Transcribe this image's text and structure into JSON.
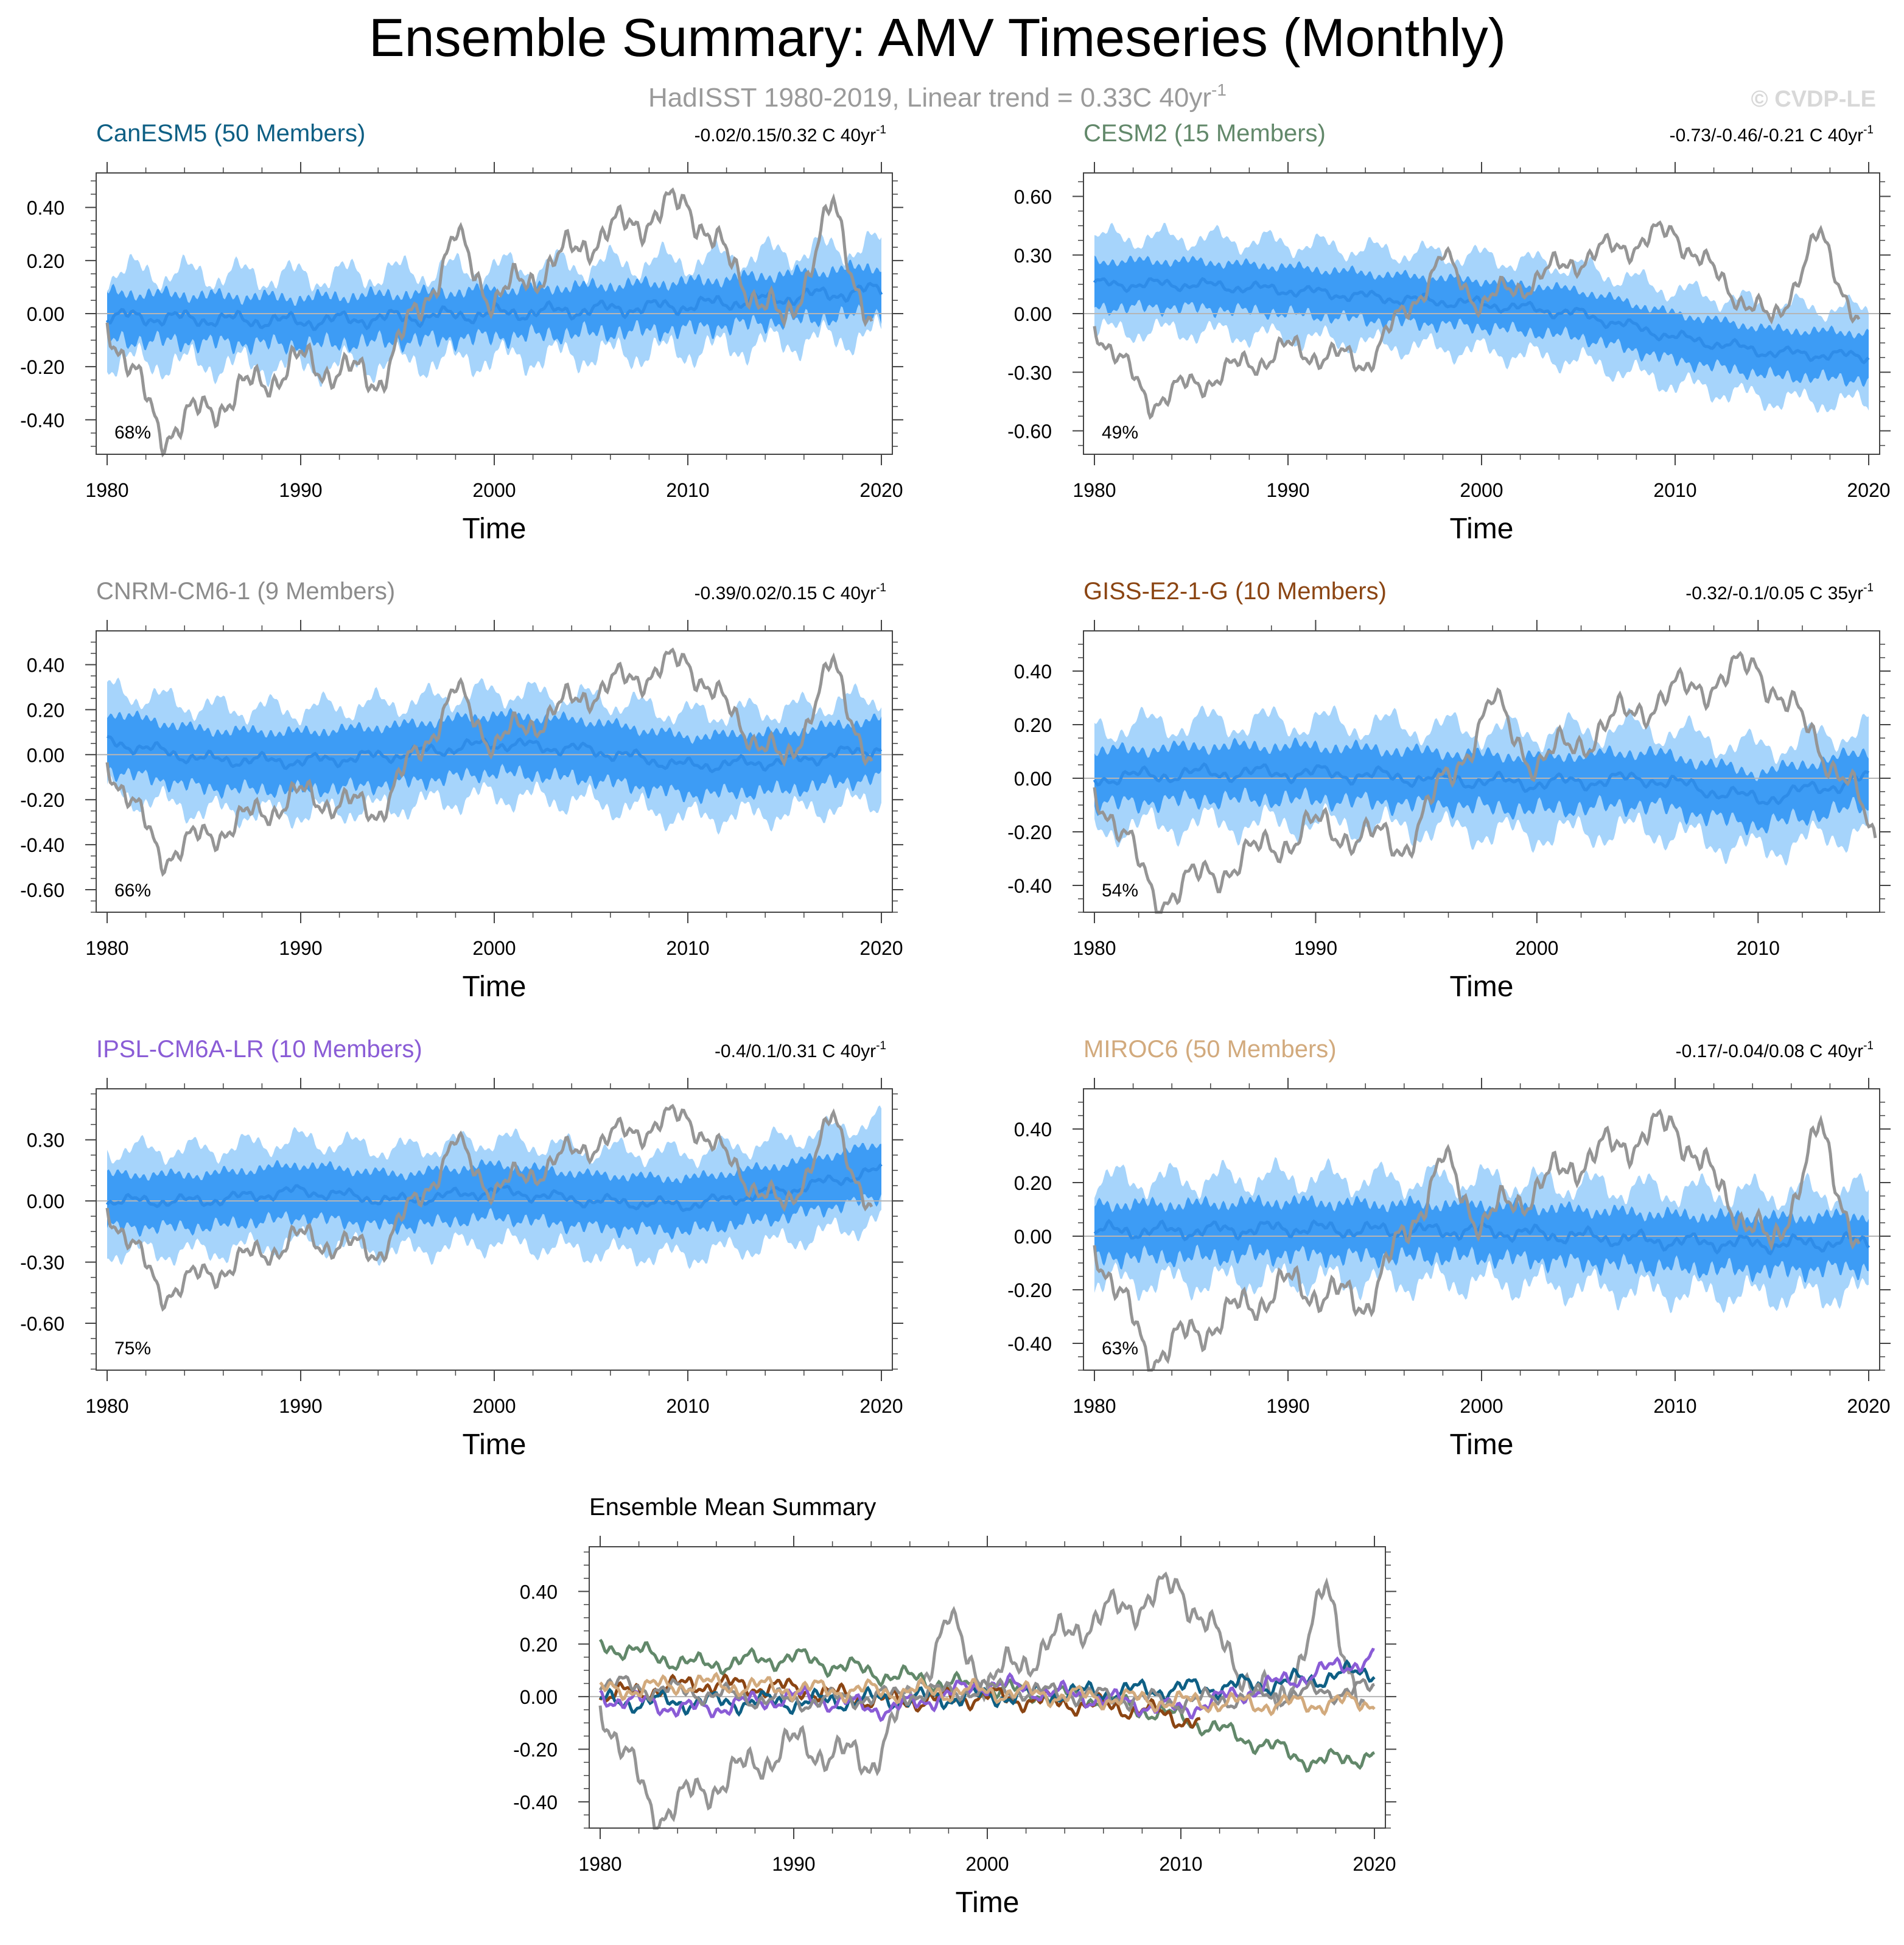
{
  "figure": {
    "title": "Ensemble Summary: AMV Timeseries (Monthly)",
    "subtitle_main": "HadISST 1980-2019, Linear trend = 0.33C 40yr",
    "subtitle_sup": "-1",
    "watermark": "© CVDP-LE"
  },
  "colors": {
    "observation": "#959595",
    "ensemble_mean": "#2e8ce8",
    "band_inner": "#3d9cf5",
    "band_outer": "#a6d4fb",
    "zero_line": "#b5b5b5",
    "axis": "#444444",
    "subtitle": "#9a9a9a",
    "watermark": "#d8d8d8"
  },
  "chart_data": [
    {
      "type": "line",
      "model": "CanESM5",
      "title": "CanESM5 (50 Members)",
      "title_color": "#0e5f84",
      "trend_text": "-0.02/0.15/0.32 C 40yr",
      "trend_sup": "-1",
      "percent_label": "68%",
      "xlabel": "Time",
      "x_range": [
        1980,
        2020
      ],
      "xticks": [
        1980,
        1990,
        2000,
        2010,
        2020
      ],
      "ylim": [
        -0.53,
        0.53
      ],
      "yticks": [
        -0.4,
        -0.2,
        0.0,
        0.2,
        0.4
      ],
      "ytick_labels": [
        "-0.40",
        "-0.20",
        "0.00",
        "0.20",
        "0.40"
      ],
      "ensemble_mean_anchors": [
        [
          1980,
          -0.01
        ],
        [
          1990,
          -0.03
        ],
        [
          2000,
          0.0
        ],
        [
          2010,
          0.03
        ],
        [
          2020,
          0.09
        ]
      ],
      "band_inner_halfwidth": 0.09,
      "band_outer_halfwidth": 0.17,
      "obs_anchors": [
        [
          1980,
          -0.02
        ],
        [
          1982.8,
          -0.45
        ],
        [
          1986,
          -0.33
        ],
        [
          1990,
          -0.18
        ],
        [
          1994,
          -0.25
        ],
        [
          1996,
          0.0
        ],
        [
          1998,
          0.28
        ],
        [
          2000,
          0.05
        ],
        [
          2005,
          0.28
        ],
        [
          2010,
          0.42
        ],
        [
          2012,
          0.2
        ],
        [
          2015,
          -0.05
        ],
        [
          2017.5,
          0.4
        ],
        [
          2019.5,
          -0.05
        ]
      ]
    },
    {
      "type": "line",
      "model": "CESM2",
      "title": "CESM2 (15 Members)",
      "title_color": "#62886a",
      "trend_text": "-0.73/-0.46/-0.21 C 40yr",
      "trend_sup": "-1",
      "percent_label": "49%",
      "xlabel": "Time",
      "x_range": [
        1980,
        2020
      ],
      "xticks": [
        1980,
        1990,
        2000,
        2010,
        2020
      ],
      "ylim": [
        -0.72,
        0.72
      ],
      "yticks": [
        -0.6,
        -0.3,
        0.0,
        0.3,
        0.6
      ],
      "ytick_labels": [
        "-0.60",
        "-0.30",
        "0.00",
        "0.30",
        "0.60"
      ],
      "ensemble_mean_anchors": [
        [
          1980,
          0.15
        ],
        [
          1985,
          0.15
        ],
        [
          1990,
          0.12
        ],
        [
          1995,
          0.08
        ],
        [
          2000,
          0.05
        ],
        [
          2005,
          0.0
        ],
        [
          2010,
          -0.12
        ],
        [
          2015,
          -0.2
        ],
        [
          2020,
          -0.22
        ]
      ],
      "band_inner_halfwidth": 0.12,
      "band_outer_halfwidth": 0.24,
      "obs_anchors": [
        [
          1980,
          -0.05
        ],
        [
          1982.8,
          -0.45
        ],
        [
          1986,
          -0.33
        ],
        [
          1990,
          -0.18
        ],
        [
          1994,
          -0.25
        ],
        [
          1996,
          0.0
        ],
        [
          1998,
          0.28
        ],
        [
          2000,
          0.05
        ],
        [
          2005,
          0.28
        ],
        [
          2010,
          0.42
        ],
        [
          2012,
          0.2
        ],
        [
          2015,
          -0.05
        ],
        [
          2017.5,
          0.4
        ],
        [
          2019.5,
          -0.05
        ]
      ]
    },
    {
      "type": "line",
      "model": "CNRM-CM6-1",
      "title": "CNRM-CM6-1 (9 Members)",
      "title_color": "#8c8c8c",
      "trend_text": "-0.39/0.02/0.15 C 40yr",
      "trend_sup": "-1",
      "percent_label": "66%",
      "xlabel": "Time",
      "x_range": [
        1980,
        2020
      ],
      "xticks": [
        1980,
        1990,
        2000,
        2010,
        2020
      ],
      "ylim": [
        -0.7,
        0.55
      ],
      "yticks": [
        -0.6,
        -0.4,
        -0.2,
        0.0,
        0.2,
        0.4
      ],
      "ytick_labels": [
        "-0.60",
        "-0.40",
        "-0.20",
        "0.00",
        "0.20",
        "0.40"
      ],
      "ensemble_mean_anchors": [
        [
          1980,
          0.06
        ],
        [
          1985,
          -0.02
        ],
        [
          1990,
          -0.03
        ],
        [
          1995,
          0.0
        ],
        [
          2000,
          0.05
        ],
        [
          2005,
          0.02
        ],
        [
          2010,
          -0.05
        ],
        [
          2015,
          -0.03
        ],
        [
          2020,
          0.03
        ]
      ],
      "band_inner_halfwidth": 0.13,
      "band_outer_halfwidth": 0.23,
      "obs_anchors": [
        [
          1980,
          -0.02
        ],
        [
          1982.8,
          -0.45
        ],
        [
          1986,
          -0.33
        ],
        [
          1990,
          -0.18
        ],
        [
          1994,
          -0.25
        ],
        [
          1996,
          0.0
        ],
        [
          1998,
          0.28
        ],
        [
          2000,
          0.05
        ],
        [
          2005,
          0.28
        ],
        [
          2010,
          0.42
        ],
        [
          2012,
          0.2
        ],
        [
          2015,
          -0.05
        ],
        [
          2017.5,
          0.4
        ],
        [
          2019.5,
          -0.05
        ]
      ]
    },
    {
      "type": "line",
      "model": "GISS-E2-1-G",
      "title": "GISS-E2-1-G (10 Members)",
      "title_color": "#8b4513",
      "trend_text": "-0.32/-0.1/0.05 C 35yr",
      "trend_sup": "-1",
      "percent_label": "54%",
      "xlabel": "Time",
      "x_range": [
        1980,
        2015
      ],
      "xticks": [
        1980,
        1990,
        2000,
        2010
      ],
      "ylim": [
        -0.5,
        0.55
      ],
      "yticks": [
        -0.4,
        -0.2,
        0.0,
        0.2,
        0.4
      ],
      "ytick_labels": [
        "-0.40",
        "-0.20",
        "0.00",
        "0.20",
        "0.40"
      ],
      "ensemble_mean_anchors": [
        [
          1980,
          0.0
        ],
        [
          1985,
          0.02
        ],
        [
          1990,
          0.02
        ],
        [
          1995,
          0.0
        ],
        [
          2000,
          -0.02
        ],
        [
          2005,
          0.0
        ],
        [
          2010,
          -0.08
        ],
        [
          2015,
          0.0
        ]
      ],
      "band_inner_halfwidth": 0.1,
      "band_outer_halfwidth": 0.19,
      "obs_anchors": [
        [
          1980,
          -0.02
        ],
        [
          1982.8,
          -0.45
        ],
        [
          1986,
          -0.33
        ],
        [
          1990,
          -0.18
        ],
        [
          1994,
          -0.25
        ],
        [
          1996,
          0.0
        ],
        [
          1998,
          0.28
        ],
        [
          2000,
          0.05
        ],
        [
          2005,
          0.28
        ],
        [
          2010,
          0.42
        ],
        [
          2012,
          0.2
        ],
        [
          2014,
          0.0
        ],
        [
          2015.3,
          -0.25
        ]
      ]
    },
    {
      "type": "line",
      "model": "IPSL-CM6A-LR",
      "title": "IPSL-CM6A-LR (10 Members)",
      "title_color": "#8a5cd6",
      "trend_text": "-0.4/0.1/0.31 C 40yr",
      "trend_sup": "-1",
      "percent_label": "75%",
      "xlabel": "Time",
      "x_range": [
        1980,
        2020
      ],
      "xticks": [
        1980,
        1990,
        2000,
        2010,
        2020
      ],
      "ylim": [
        -0.83,
        0.55
      ],
      "yticks": [
        -0.6,
        -0.3,
        0.0,
        0.3
      ],
      "ytick_labels": [
        "-0.60",
        "-0.30",
        "0.00",
        "0.30"
      ],
      "ensemble_mean_anchors": [
        [
          1980,
          0.0
        ],
        [
          1985,
          0.0
        ],
        [
          1990,
          0.05
        ],
        [
          1995,
          0.0
        ],
        [
          2000,
          0.05
        ],
        [
          2005,
          0.0
        ],
        [
          2010,
          -0.02
        ],
        [
          2015,
          0.05
        ],
        [
          2020,
          0.15
        ]
      ],
      "band_inner_halfwidth": 0.13,
      "band_outer_halfwidth": 0.25,
      "obs_anchors": [
        [
          1980,
          -0.02
        ],
        [
          1982.8,
          -0.45
        ],
        [
          1986,
          -0.33
        ],
        [
          1990,
          -0.18
        ],
        [
          1994,
          -0.25
        ],
        [
          1996,
          0.0
        ],
        [
          1998,
          0.28
        ],
        [
          2000,
          0.05
        ],
        [
          2005,
          0.28
        ],
        [
          2010,
          0.42
        ],
        [
          2012,
          0.2
        ],
        [
          2015,
          -0.05
        ],
        [
          2017.5,
          0.4
        ],
        [
          2019.5,
          -0.05
        ]
      ]
    },
    {
      "type": "line",
      "model": "MIROC6",
      "title": "MIROC6 (50 Members)",
      "title_color": "#d2aa7d",
      "trend_text": "-0.17/-0.04/0.08 C 40yr",
      "trend_sup": "-1",
      "percent_label": "63%",
      "xlabel": "Time",
      "x_range": [
        1980,
        2020
      ],
      "xticks": [
        1980,
        1990,
        2000,
        2010,
        2020
      ],
      "ylim": [
        -0.5,
        0.55
      ],
      "yticks": [
        -0.4,
        -0.2,
        0.0,
        0.2,
        0.4
      ],
      "ytick_labels": [
        "-0.40",
        "-0.20",
        "0.00",
        "0.20",
        "0.40"
      ],
      "ensemble_mean_anchors": [
        [
          1980,
          0.02
        ],
        [
          1985,
          0.02
        ],
        [
          1990,
          0.03
        ],
        [
          1995,
          0.02
        ],
        [
          2000,
          0.02
        ],
        [
          2005,
          0.0
        ],
        [
          2010,
          -0.02
        ],
        [
          2015,
          -0.03
        ],
        [
          2020,
          -0.02
        ]
      ],
      "band_inner_halfwidth": 0.1,
      "band_outer_halfwidth": 0.19,
      "obs_anchors": [
        [
          1980,
          -0.02
        ],
        [
          1982.8,
          -0.45
        ],
        [
          1986,
          -0.33
        ],
        [
          1990,
          -0.18
        ],
        [
          1994,
          -0.25
        ],
        [
          1996,
          0.0
        ],
        [
          1998,
          0.28
        ],
        [
          2000,
          0.05
        ],
        [
          2005,
          0.28
        ],
        [
          2010,
          0.42
        ],
        [
          2012,
          0.2
        ],
        [
          2015,
          -0.05
        ],
        [
          2017.5,
          0.4
        ],
        [
          2019.5,
          -0.05
        ]
      ]
    },
    {
      "type": "line",
      "model": "summary",
      "title": "Ensemble Mean Summary",
      "title_color": "#000000",
      "xlabel": "Time",
      "x_range": [
        1980,
        2020
      ],
      "xticks": [
        1980,
        1990,
        2000,
        2010,
        2020
      ],
      "ylim": [
        -0.5,
        0.57
      ],
      "yticks": [
        -0.4,
        -0.2,
        0.0,
        0.2,
        0.4
      ],
      "ytick_labels": [
        "-0.40",
        "-0.20",
        "0.00",
        "0.20",
        "0.40"
      ],
      "obs_anchors": [
        [
          1980,
          -0.02
        ],
        [
          1982.8,
          -0.45
        ],
        [
          1986,
          -0.33
        ],
        [
          1990,
          -0.18
        ],
        [
          1994,
          -0.25
        ],
        [
          1996,
          0.0
        ],
        [
          1998,
          0.28
        ],
        [
          2000,
          0.05
        ],
        [
          2005,
          0.28
        ],
        [
          2010,
          0.42
        ],
        [
          2012,
          0.2
        ],
        [
          2015,
          -0.05
        ],
        [
          2017.5,
          0.4
        ],
        [
          2019.5,
          -0.05
        ]
      ],
      "series": [
        {
          "name": "CESM2",
          "color": "#62886a",
          "anchors": [
            [
              1980,
              0.2
            ],
            [
              1985,
              0.12
            ],
            [
              1990,
              0.15
            ],
            [
              1995,
              0.08
            ],
            [
              2000,
              0.03
            ],
            [
              2005,
              0.0
            ],
            [
              2010,
              -0.08
            ],
            [
              2015,
              -0.2
            ],
            [
              2017,
              -0.25
            ],
            [
              2020,
              -0.22
            ]
          ]
        },
        {
          "name": "GISS-E2-1-G",
          "color": "#8b4513",
          "anchors": [
            [
              1980,
              0.0
            ],
            [
              1985,
              0.05
            ],
            [
              1990,
              0.03
            ],
            [
              1995,
              -0.02
            ],
            [
              2000,
              0.0
            ],
            [
              2005,
              -0.03
            ],
            [
              2008,
              -0.05
            ],
            [
              2011,
              -0.1
            ]
          ]
        },
        {
          "name": "CanESM5",
          "color": "#0e5f84",
          "anchors": [
            [
              1980,
              -0.02
            ],
            [
              1990,
              -0.02
            ],
            [
              2000,
              0.0
            ],
            [
              2010,
              0.03
            ],
            [
              2015,
              0.05
            ],
            [
              2020,
              0.1
            ]
          ]
        },
        {
          "name": "IPSL-CM6A-LR",
          "color": "#8a5cd6",
          "anchors": [
            [
              1980,
              0.0
            ],
            [
              1985,
              -0.05
            ],
            [
              1990,
              0.0
            ],
            [
              1995,
              -0.05
            ],
            [
              2000,
              0.05
            ],
            [
              2005,
              0.0
            ],
            [
              2010,
              -0.05
            ],
            [
              2015,
              0.05
            ],
            [
              2020,
              0.15
            ]
          ]
        },
        {
          "name": "CNRM-CM6-1",
          "color": "#8c8c8c",
          "anchors": [
            [
              1980,
              0.05
            ],
            [
              1990,
              -0.02
            ],
            [
              2000,
              0.03
            ],
            [
              2010,
              -0.02
            ],
            [
              2020,
              0.03
            ]
          ]
        },
        {
          "name": "MIROC6",
          "color": "#d2aa7d",
          "anchors": [
            [
              1980,
              0.02
            ],
            [
              1985,
              0.05
            ],
            [
              1990,
              0.03
            ],
            [
              1995,
              0.02
            ],
            [
              2000,
              0.02
            ],
            [
              2005,
              0.0
            ],
            [
              2010,
              -0.02
            ],
            [
              2015,
              -0.03
            ],
            [
              2020,
              -0.02
            ]
          ]
        }
      ]
    }
  ]
}
